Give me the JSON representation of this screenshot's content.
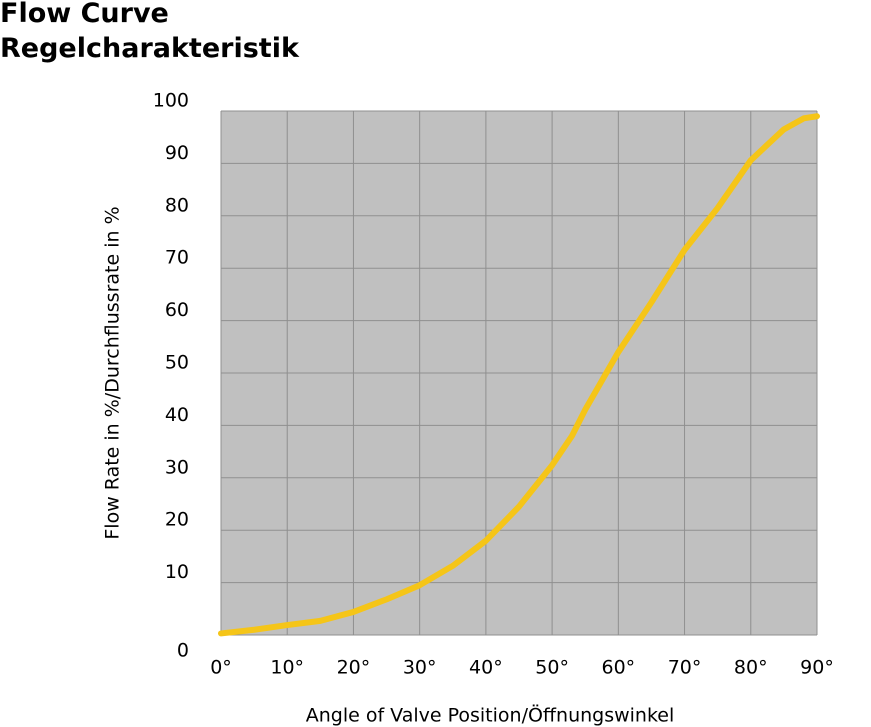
{
  "chart_data": {
    "type": "line",
    "title": "Flow Curve",
    "subtitle": "Regelcharakteristik",
    "x_label": "Angle of Valve Position/Öffnungswinkel",
    "y_label": "Flow Rate in %/Durchflussrate in %",
    "x": [
      0,
      5,
      10,
      15,
      20,
      25,
      30,
      35,
      40,
      45,
      50,
      53,
      55,
      60,
      65,
      70,
      75,
      80,
      85,
      88,
      90
    ],
    "series": [
      {
        "name": "Flow rate",
        "color": "#f5c518",
        "values": [
          0.3,
          1,
          1.9,
          2.7,
          4.4,
          6.8,
          9.5,
          13.2,
          18,
          24.5,
          32.4,
          38,
          43,
          54,
          63.5,
          73.5,
          81.5,
          90.6,
          96.5,
          98.6,
          99
        ]
      }
    ],
    "xlim": [
      0,
      90
    ],
    "ylim": [
      0,
      100
    ],
    "xticks": [
      {
        "value": 0,
        "label": "0°"
      },
      {
        "value": 10,
        "label": "10°"
      },
      {
        "value": 20,
        "label": "20°"
      },
      {
        "value": 30,
        "label": "30°"
      },
      {
        "value": 40,
        "label": "40°"
      },
      {
        "value": 50,
        "label": "50°"
      },
      {
        "value": 60,
        "label": "60°"
      },
      {
        "value": 70,
        "label": "70°"
      },
      {
        "value": 80,
        "label": "80°"
      },
      {
        "value": 90,
        "label": "90°"
      }
    ],
    "yticks": [
      0,
      10,
      20,
      30,
      40,
      50,
      60,
      70,
      80,
      90,
      100
    ],
    "grid": true,
    "plot_background": "#c0c0c0",
    "grid_color": "#8f8f8f"
  }
}
